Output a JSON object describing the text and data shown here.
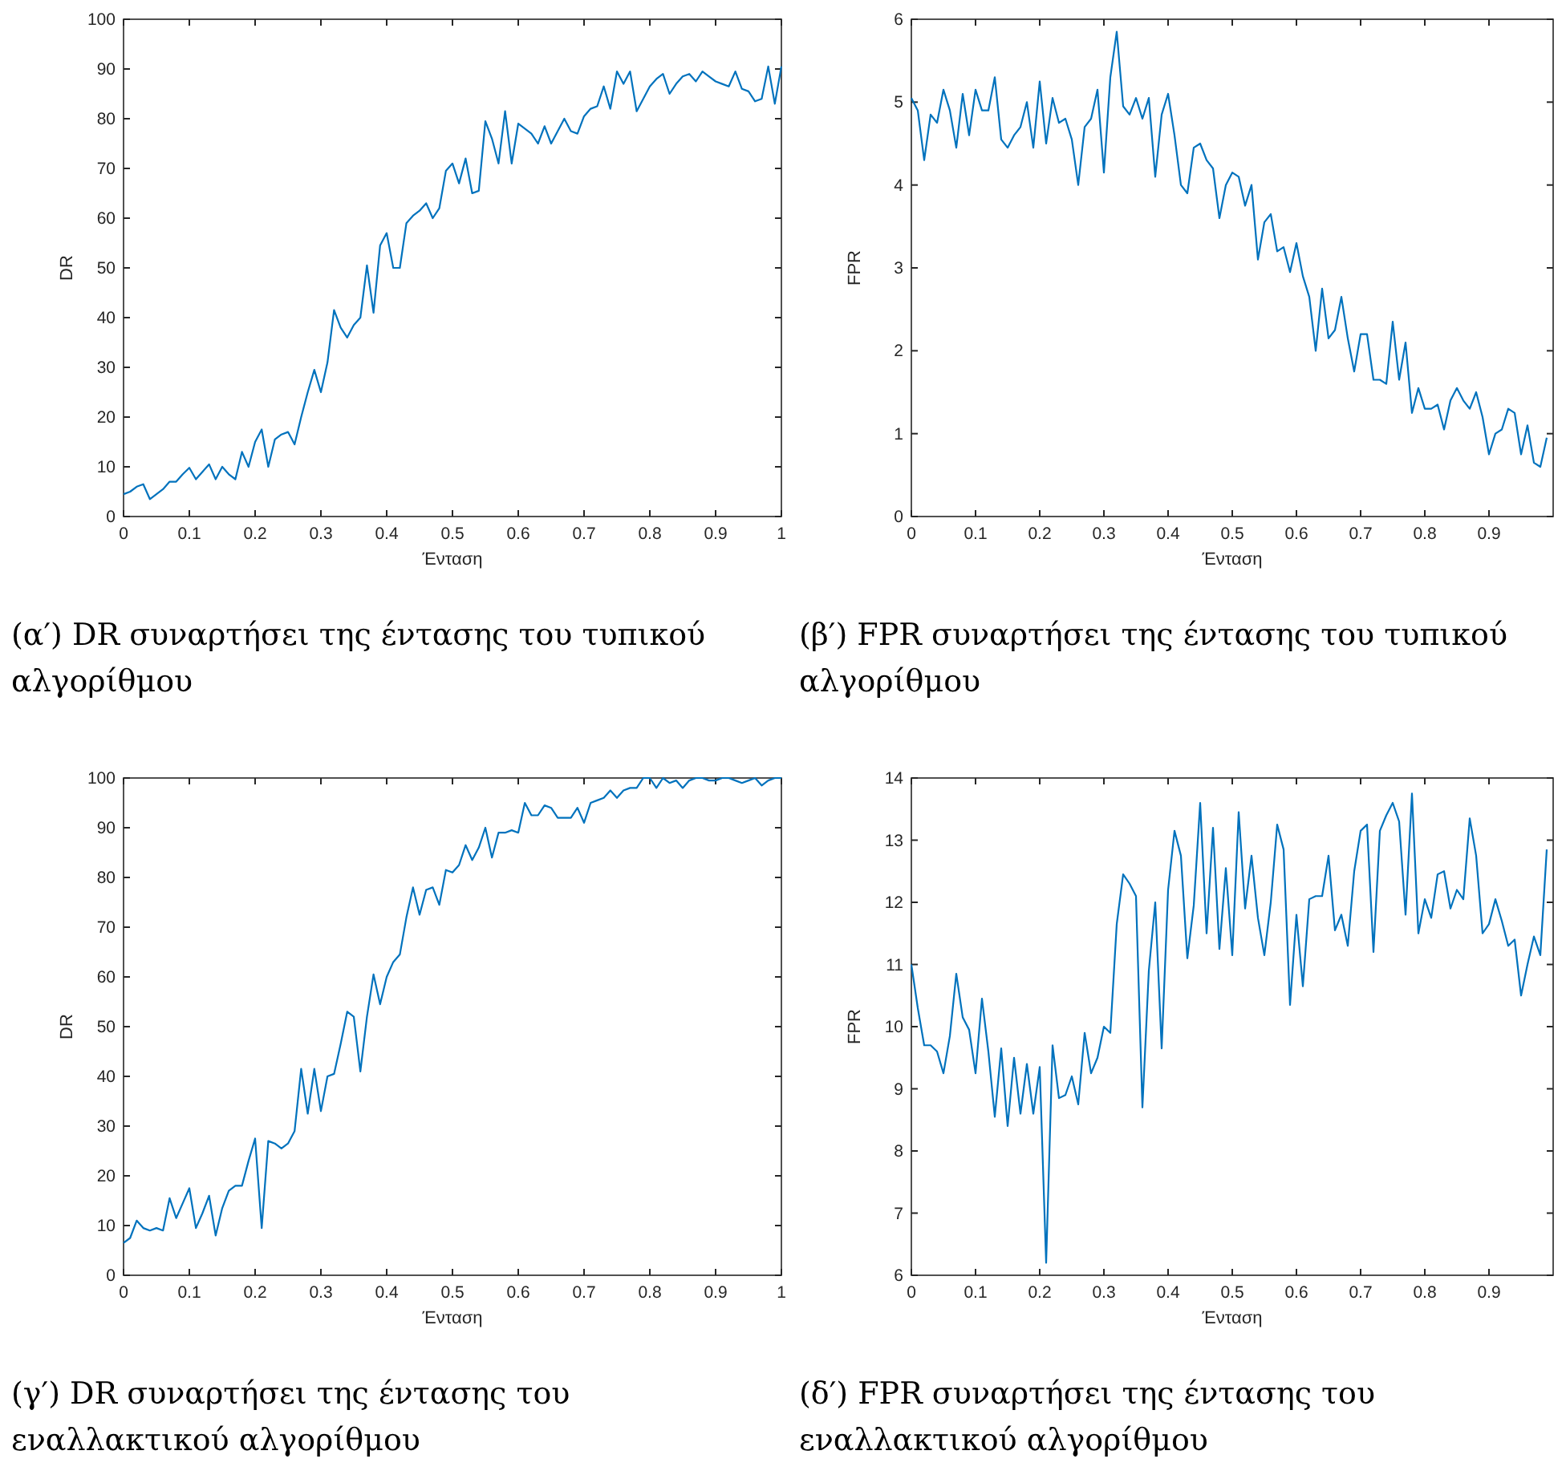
{
  "chart_data": [
    {
      "type": "line",
      "title": "(α′) DR συναρτήσει της έντασης του τυπικού αλγορίθμου",
      "xlabel": "Ένταση",
      "ylabel": "DR",
      "xlim": [
        0,
        1
      ],
      "ylim": [
        0,
        100
      ],
      "xticks": [
        0,
        0.1,
        0.2,
        0.3,
        0.4,
        0.5,
        0.6,
        0.7,
        0.8,
        0.9,
        1
      ],
      "yticks": [
        0,
        10,
        20,
        30,
        40,
        50,
        60,
        70,
        80,
        90,
        100
      ],
      "marker": "none",
      "line_style": "solid",
      "x": [
        0,
        0.01,
        0.02,
        0.03,
        0.04,
        0.05,
        0.06,
        0.07,
        0.08,
        0.09,
        0.1,
        0.11,
        0.12,
        0.13,
        0.14,
        0.15,
        0.16,
        0.17,
        0.18,
        0.19,
        0.2,
        0.21,
        0.22,
        0.23,
        0.24,
        0.25,
        0.26,
        0.27,
        0.28,
        0.29,
        0.3,
        0.31,
        0.32,
        0.33,
        0.34,
        0.35,
        0.36,
        0.37,
        0.38,
        0.39,
        0.4,
        0.41,
        0.42,
        0.43,
        0.44,
        0.45,
        0.46,
        0.47,
        0.48,
        0.49,
        0.5,
        0.51,
        0.52,
        0.53,
        0.54,
        0.55,
        0.56,
        0.57,
        0.58,
        0.59,
        0.6,
        0.61,
        0.62,
        0.63,
        0.64,
        0.65,
        0.66,
        0.67,
        0.68,
        0.69,
        0.7,
        0.71,
        0.72,
        0.73,
        0.74,
        0.75,
        0.76,
        0.77,
        0.78,
        0.79,
        0.8,
        0.81,
        0.82,
        0.83,
        0.84,
        0.85,
        0.86,
        0.87,
        0.88,
        0.89,
        0.9,
        0.91,
        0.92,
        0.93,
        0.94,
        0.95,
        0.96,
        0.97,
        0.98,
        0.99,
        1
      ],
      "series": [
        {
          "color": "#0072bd",
          "values": [
            4.5,
            5,
            6,
            6.5,
            3.5,
            4.5,
            5.5,
            7,
            7,
            8.5,
            9.8,
            7.5,
            9,
            10.5,
            7.5,
            10,
            8.5,
            7.5,
            13,
            10,
            15,
            17.5,
            10,
            15.5,
            16.5,
            17,
            14.5,
            20,
            25,
            29.5,
            25,
            31,
            41.5,
            38,
            36,
            38.5,
            40,
            50.5,
            41,
            54.5,
            57,
            50,
            50,
            59,
            60.5,
            61.5,
            63,
            60,
            62,
            69.5,
            71,
            67,
            72,
            65,
            65.5,
            79.5,
            76,
            71,
            81.5,
            71,
            79,
            78,
            77,
            75,
            78.5,
            75,
            77.5,
            80,
            77.5,
            77,
            80.5,
            82,
            82.5,
            86.5,
            82,
            89.5,
            87,
            89.5,
            81.5,
            84,
            86.5,
            88,
            89,
            85,
            87,
            88.5,
            89,
            87.5,
            89.5,
            88.5,
            87.5,
            87,
            86.5,
            89.5,
            86,
            85.5,
            83.5,
            84,
            90.5,
            83,
            90.5
          ]
        }
      ]
    },
    {
      "type": "line",
      "title": "(β′) FPR συναρτήσει της έντασης του τυπικού αλγορίθμου",
      "xlabel": "Ένταση",
      "ylabel": "FPR",
      "xlim": [
        0,
        1
      ],
      "ylim": [
        0,
        6
      ],
      "xticks": [
        0,
        0.1,
        0.2,
        0.3,
        0.4,
        0.5,
        0.6,
        0.7,
        0.8,
        0.9
      ],
      "yticks": [
        0,
        1,
        2,
        3,
        4,
        5,
        6
      ],
      "marker": "none",
      "line_style": "solid",
      "x": [
        0,
        0.01,
        0.02,
        0.03,
        0.04,
        0.05,
        0.06,
        0.07,
        0.08,
        0.09,
        0.1,
        0.11,
        0.12,
        0.13,
        0.14,
        0.15,
        0.16,
        0.17,
        0.18,
        0.19,
        0.2,
        0.21,
        0.22,
        0.23,
        0.24,
        0.25,
        0.26,
        0.27,
        0.28,
        0.29,
        0.3,
        0.31,
        0.32,
        0.33,
        0.34,
        0.35,
        0.36,
        0.37,
        0.38,
        0.39,
        0.4,
        0.41,
        0.42,
        0.43,
        0.44,
        0.45,
        0.46,
        0.47,
        0.48,
        0.49,
        0.5,
        0.51,
        0.52,
        0.53,
        0.54,
        0.55,
        0.56,
        0.57,
        0.58,
        0.59,
        0.6,
        0.61,
        0.62,
        0.63,
        0.64,
        0.65,
        0.66,
        0.67,
        0.68,
        0.69,
        0.7,
        0.71,
        0.72,
        0.73,
        0.74,
        0.75,
        0.76,
        0.77,
        0.78,
        0.79,
        0.8,
        0.81,
        0.82,
        0.83,
        0.84,
        0.85,
        0.86,
        0.87,
        0.88,
        0.89,
        0.9,
        0.91,
        0.92,
        0.93,
        0.94,
        0.95,
        0.96,
        0.97,
        0.98,
        0.99
      ],
      "series": [
        {
          "color": "#0072bd",
          "values": [
            5.05,
            4.9,
            4.3,
            4.85,
            4.75,
            5.15,
            4.9,
            4.45,
            5.1,
            4.6,
            5.15,
            4.9,
            4.9,
            5.3,
            4.55,
            4.45,
            4.6,
            4.7,
            5,
            4.45,
            5.25,
            4.5,
            5.05,
            4.75,
            4.8,
            4.55,
            4,
            4.7,
            4.8,
            5.15,
            4.15,
            5.3,
            5.85,
            4.95,
            4.85,
            5.05,
            4.8,
            5.05,
            4.1,
            4.85,
            5.1,
            4.6,
            4,
            3.9,
            4.45,
            4.5,
            4.3,
            4.2,
            3.6,
            4,
            4.15,
            4.1,
            3.75,
            4,
            3.1,
            3.55,
            3.65,
            3.2,
            3.25,
            2.95,
            3.3,
            2.9,
            2.65,
            2,
            2.75,
            2.15,
            2.25,
            2.65,
            2.15,
            1.75,
            2.2,
            2.2,
            1.65,
            1.65,
            1.6,
            2.35,
            1.65,
            2.1,
            1.25,
            1.55,
            1.3,
            1.3,
            1.35,
            1.05,
            1.4,
            1.55,
            1.4,
            1.3,
            1.5,
            1.2,
            0.75,
            1,
            1.05,
            1.3,
            1.25,
            0.75,
            1.1,
            0.65,
            0.6,
            0.95
          ]
        }
      ]
    },
    {
      "type": "line",
      "title": "(γ′) DR συναρτήσει της έντασης του εναλλακτικού αλγορίθμου",
      "xlabel": "Ένταση",
      "ylabel": "DR",
      "xlim": [
        0,
        1
      ],
      "ylim": [
        0,
        100
      ],
      "xticks": [
        0,
        0.1,
        0.2,
        0.3,
        0.4,
        0.5,
        0.6,
        0.7,
        0.8,
        0.9,
        1
      ],
      "yticks": [
        0,
        10,
        20,
        30,
        40,
        50,
        60,
        70,
        80,
        90,
        100
      ],
      "marker": "none",
      "line_style": "solid",
      "x": [
        0,
        0.01,
        0.02,
        0.03,
        0.04,
        0.05,
        0.06,
        0.07,
        0.08,
        0.09,
        0.1,
        0.11,
        0.12,
        0.13,
        0.14,
        0.15,
        0.16,
        0.17,
        0.18,
        0.19,
        0.2,
        0.21,
        0.22,
        0.23,
        0.24,
        0.25,
        0.26,
        0.27,
        0.28,
        0.29,
        0.3,
        0.31,
        0.32,
        0.33,
        0.34,
        0.35,
        0.36,
        0.37,
        0.38,
        0.39,
        0.4,
        0.41,
        0.42,
        0.43,
        0.44,
        0.45,
        0.46,
        0.47,
        0.48,
        0.49,
        0.5,
        0.51,
        0.52,
        0.53,
        0.54,
        0.55,
        0.56,
        0.57,
        0.58,
        0.59,
        0.6,
        0.61,
        0.62,
        0.63,
        0.64,
        0.65,
        0.66,
        0.67,
        0.68,
        0.69,
        0.7,
        0.71,
        0.72,
        0.73,
        0.74,
        0.75,
        0.76,
        0.77,
        0.78,
        0.79,
        0.8,
        0.81,
        0.82,
        0.83,
        0.84,
        0.85,
        0.86,
        0.87,
        0.88,
        0.89,
        0.9,
        0.91,
        0.92,
        0.93,
        0.94,
        0.95,
        0.96,
        0.97,
        0.98,
        0.99,
        1
      ],
      "series": [
        {
          "color": "#0072bd",
          "values": [
            6.5,
            7.5,
            11,
            9.5,
            9,
            9.5,
            9,
            15.5,
            11.5,
            14.5,
            17.5,
            9.5,
            12.5,
            16,
            8,
            13.5,
            17,
            18,
            18,
            23,
            27.5,
            9.5,
            27,
            26.5,
            25.5,
            26.5,
            29,
            41.5,
            32.5,
            41.5,
            33,
            40,
            40.5,
            46.5,
            53,
            52,
            41,
            52,
            60.5,
            54.5,
            60,
            63,
            64.5,
            72,
            78,
            72.5,
            77.5,
            78,
            74.5,
            81.5,
            81,
            82.5,
            86.5,
            83.5,
            86,
            90,
            84,
            89,
            89,
            89.5,
            89,
            95,
            92.5,
            92.5,
            94.5,
            94,
            92,
            92,
            92,
            94,
            91,
            95,
            95.5,
            96,
            97.5,
            96,
            97.5,
            98,
            98,
            100,
            100,
            98,
            100,
            99,
            99.5,
            98,
            99.5,
            100,
            100,
            99.5,
            99.5,
            100,
            100,
            99.5,
            99,
            99.5,
            100,
            98.5,
            99.5,
            100,
            100
          ]
        }
      ]
    },
    {
      "type": "line",
      "title": "(δ′) FPR συναρτήσει της έντασης του εναλλακτικού αλγορίθμου",
      "xlabel": "Ένταση",
      "ylabel": "FPR",
      "xlim": [
        0,
        1
      ],
      "ylim": [
        6,
        14
      ],
      "xticks": [
        0,
        0.1,
        0.2,
        0.3,
        0.4,
        0.5,
        0.6,
        0.7,
        0.8,
        0.9
      ],
      "yticks": [
        6,
        7,
        8,
        9,
        10,
        11,
        12,
        13,
        14
      ],
      "marker": "none",
      "line_style": "solid",
      "x": [
        0,
        0.01,
        0.02,
        0.03,
        0.04,
        0.05,
        0.06,
        0.07,
        0.08,
        0.09,
        0.1,
        0.11,
        0.12,
        0.13,
        0.14,
        0.15,
        0.16,
        0.17,
        0.18,
        0.19,
        0.2,
        0.21,
        0.22,
        0.23,
        0.24,
        0.25,
        0.26,
        0.27,
        0.28,
        0.29,
        0.3,
        0.31,
        0.32,
        0.33,
        0.34,
        0.35,
        0.36,
        0.37,
        0.38,
        0.39,
        0.4,
        0.41,
        0.42,
        0.43,
        0.44,
        0.45,
        0.46,
        0.47,
        0.48,
        0.49,
        0.5,
        0.51,
        0.52,
        0.53,
        0.54,
        0.55,
        0.56,
        0.57,
        0.58,
        0.59,
        0.6,
        0.61,
        0.62,
        0.63,
        0.64,
        0.65,
        0.66,
        0.67,
        0.68,
        0.69,
        0.7,
        0.71,
        0.72,
        0.73,
        0.74,
        0.75,
        0.76,
        0.77,
        0.78,
        0.79,
        0.8,
        0.81,
        0.82,
        0.83,
        0.84,
        0.85,
        0.86,
        0.87,
        0.88,
        0.89,
        0.9,
        0.91,
        0.92,
        0.93,
        0.94,
        0.95,
        0.96,
        0.97,
        0.98,
        0.99
      ],
      "series": [
        {
          "color": "#0072bd",
          "values": [
            11,
            10.3,
            9.7,
            9.7,
            9.6,
            9.25,
            9.85,
            10.85,
            10.15,
            9.95,
            9.25,
            10.45,
            9.6,
            8.55,
            9.65,
            8.4,
            9.5,
            8.6,
            9.4,
            8.6,
            9.35,
            6.2,
            9.7,
            8.85,
            8.9,
            9.2,
            8.75,
            9.9,
            9.25,
            9.5,
            10,
            9.9,
            11.65,
            12.45,
            12.3,
            12.1,
            8.7,
            10.9,
            12,
            9.65,
            12.2,
            13.15,
            12.75,
            11.1,
            11.95,
            13.6,
            11.5,
            13.2,
            11.25,
            12.55,
            11.15,
            13.45,
            11.9,
            12.75,
            11.75,
            11.15,
            12,
            13.25,
            12.85,
            10.35,
            11.8,
            10.65,
            12.05,
            12.1,
            12.1,
            12.75,
            11.55,
            11.8,
            11.3,
            12.5,
            13.15,
            13.25,
            11.2,
            13.15,
            13.4,
            13.6,
            13.3,
            11.8,
            13.75,
            11.5,
            12.05,
            11.75,
            12.45,
            12.5,
            11.9,
            12.2,
            12.05,
            13.35,
            12.75,
            11.5,
            11.65,
            12.05,
            11.7,
            11.3,
            11.4,
            10.5,
            11,
            11.45,
            11.15,
            12.85
          ]
        }
      ]
    }
  ]
}
